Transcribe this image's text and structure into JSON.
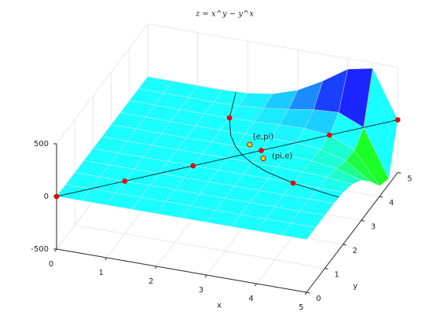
{
  "chart_data": {
    "type": "surface",
    "title": "z = x^y − y^x",
    "xlabel": "x",
    "ylabel": "y",
    "xlim": [
      0,
      5
    ],
    "ylim": [
      0,
      5
    ],
    "zlim": [
      -500,
      500
    ],
    "xticks": [
      0,
      1,
      2,
      3,
      4,
      5
    ],
    "yticks": [
      0,
      1,
      2,
      3,
      4,
      5
    ],
    "zticks": [
      -500,
      0,
      500
    ],
    "grid": true,
    "surface": {
      "x": [
        0,
        0.5,
        1,
        1.5,
        2,
        2.5,
        3,
        3.5,
        4,
        4.5,
        5
      ],
      "y": [
        0,
        0.5,
        1,
        1.5,
        2,
        2.5,
        3,
        3.5,
        4,
        4.5,
        5
      ],
      "z": [
        [
          0,
          1,
          1,
          1,
          1,
          1,
          1,
          1,
          1,
          1,
          1
        ],
        [
          -1,
          0,
          0.5,
          0.871,
          1.164,
          1.404,
          1.607,
          1.782,
          1.938,
          2.077,
          2.205
        ],
        [
          -1,
          -0.5,
          0,
          0.5,
          1,
          1.5,
          2,
          2.5,
          3,
          3.5,
          4
        ],
        [
          -1,
          -0.871,
          -0.5,
          0,
          0.578,
          1.197,
          1.821,
          2.414,
          2.938,
          3.346,
          3.587
        ],
        [
          -1,
          -1.164,
          -1,
          -0.578,
          0,
          0.593,
          1,
          0.936,
          0,
          -2.377,
          -7
        ],
        [
          -1,
          -1.404,
          -1.5,
          -1.197,
          -0.593,
          0,
          -0.037,
          -1.788,
          -7.063,
          -18.807,
          -41.755
        ],
        [
          -1,
          -1.607,
          -2,
          -1.821,
          -1,
          0.037,
          0,
          -3.89,
          -17,
          -49.171,
          -118
        ],
        [
          -1,
          -1.782,
          -2.5,
          -2.414,
          -0.936,
          1.788,
          3.89,
          0,
          -22.063,
          -87.436,
          -245.711
        ],
        [
          -1,
          -1.938,
          -3,
          -2.938,
          0,
          7.063,
          17,
          22.063,
          0,
          -101.937,
          -399
        ],
        [
          -1,
          -2.077,
          -3.5,
          -3.346,
          2.377,
          18.807,
          49.171,
          87.436,
          101.937,
          0,
          -447.74
        ],
        [
          -1,
          -2.205,
          -4,
          -3.587,
          7,
          41.755,
          118,
          245.711,
          399,
          447.74,
          0
        ]
      ]
    },
    "lines": [
      {
        "x": [
          0,
          1,
          2,
          3,
          4,
          5
        ],
        "y": [
          0,
          1,
          2,
          3,
          4,
          5
        ],
        "z": [
          0,
          0,
          0,
          0,
          0,
          0
        ],
        "color": "#000000",
        "marker_color": "#ff0000"
      },
      {
        "x": [
          1.765,
          2,
          2.25,
          2.488,
          2.718,
          2.986,
          3.375,
          4,
          5
        ],
        "y": [
          5,
          4,
          3.375,
          2.986,
          2.718,
          2.488,
          2.25,
          2,
          1.765
        ],
        "z": [
          0,
          0,
          0,
          0,
          0,
          0,
          0,
          0,
          0
        ],
        "color": "#000000"
      }
    ],
    "points": {
      "x": [
        2,
        4
      ],
      "y": [
        4,
        2
      ],
      "z": [
        0,
        0
      ],
      "color": "#ff0000"
    },
    "annotations": [
      {
        "x": 2.718,
        "y": 3.142,
        "z": 0,
        "text": "(e,pi)",
        "color": "#ffd700"
      },
      {
        "x": 3.142,
        "y": 2.718,
        "z": 0,
        "text": "(pi,e)",
        "color": "#ffd700"
      }
    ]
  }
}
